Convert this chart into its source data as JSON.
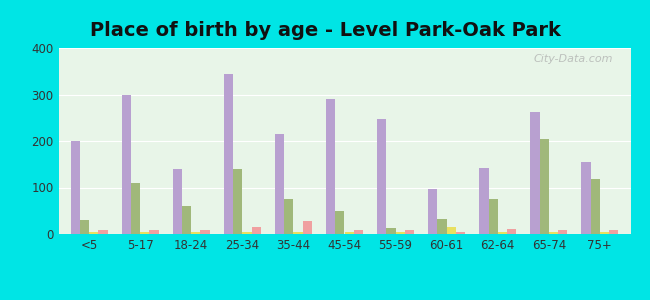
{
  "title": "Place of birth by age - Level Park-Oak Park",
  "categories": [
    "<5",
    "5-17",
    "18-24",
    "25-34",
    "35-44",
    "45-54",
    "55-59",
    "60-61",
    "62-64",
    "65-74",
    "75+"
  ],
  "series": {
    "Born in state of residence": [
      200,
      300,
      140,
      345,
      215,
      290,
      247,
      97,
      143,
      262,
      155
    ],
    "Born in other state": [
      30,
      110,
      60,
      140,
      75,
      50,
      12,
      33,
      75,
      205,
      118
    ],
    "Native, outside of US": [
      5,
      5,
      5,
      5,
      5,
      5,
      5,
      15,
      5,
      5,
      5
    ],
    "Foreign-born": [
      8,
      8,
      8,
      15,
      28,
      8,
      8,
      5,
      10,
      8,
      8
    ]
  },
  "colors": {
    "Born in state of residence": "#b8a0d0",
    "Born in other state": "#a0b87a",
    "Native, outside of US": "#e8e060",
    "Foreign-born": "#f0a0a0"
  },
  "legend_colors": {
    "Born in state of residence": "#c8a8e8",
    "Born in other state": "#c0cc90",
    "Native, outside of US": "#f0e870",
    "Foreign-born": "#f8b8b8"
  },
  "ylim": [
    0,
    400
  ],
  "yticks": [
    0,
    100,
    200,
    300,
    400
  ],
  "background_color": "#00e5e5",
  "bar_width": 0.18,
  "title_fontsize": 14,
  "watermark": "City-Data.com"
}
